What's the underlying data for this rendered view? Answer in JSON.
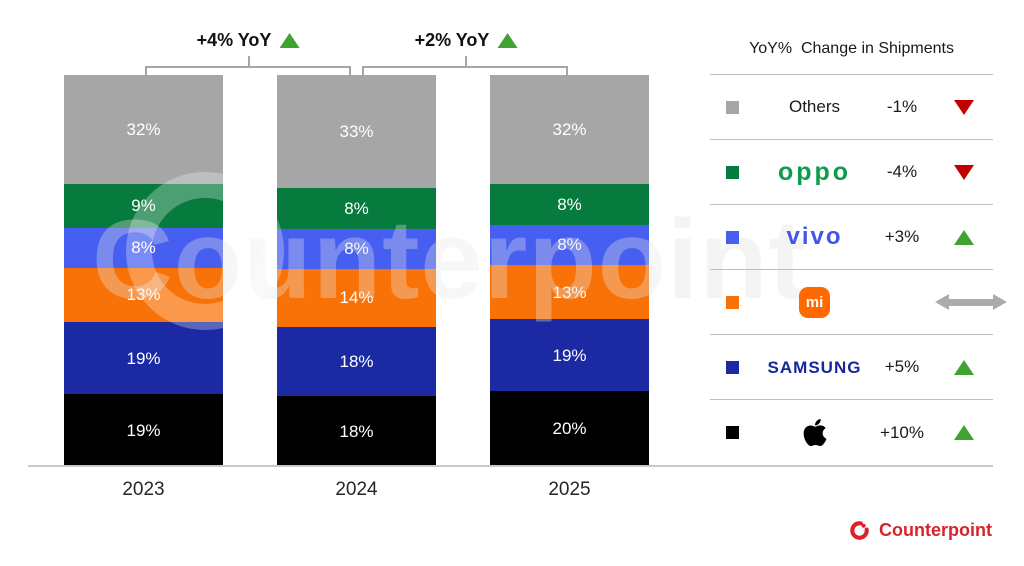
{
  "chart_data": {
    "type": "bar",
    "stacked": true,
    "title": "",
    "categories": [
      "2023",
      "2024",
      "2025"
    ],
    "series": [
      {
        "name": "Apple",
        "values": [
          19,
          18,
          20
        ]
      },
      {
        "name": "Samsung",
        "values": [
          19,
          18,
          19
        ]
      },
      {
        "name": "Xiaomi",
        "values": [
          13,
          14,
          13
        ]
      },
      {
        "name": "vivo",
        "values": [
          8,
          8,
          8
        ]
      },
      {
        "name": "OPPO",
        "values": [
          9,
          8,
          8
        ]
      },
      {
        "name": "Others",
        "values": [
          32,
          33,
          32
        ]
      }
    ],
    "value_suffix": "%",
    "ylim": [
      0,
      100
    ],
    "grid": false,
    "legend_position": "right",
    "annotations": [
      {
        "label": "+4% YoY",
        "direction": "up",
        "between": [
          "2023",
          "2024"
        ]
      },
      {
        "label": "+2% YoY",
        "direction": "up",
        "between": [
          "2024",
          "2025"
        ]
      }
    ]
  },
  "legend": {
    "title": "YoY%  Change in Shipments",
    "rows": [
      {
        "brand": "Others",
        "logo_text": "Others",
        "change": "-1%",
        "direction": "down"
      },
      {
        "brand": "OPPO",
        "logo_text": "oppo",
        "change": "-4%",
        "direction": "down"
      },
      {
        "brand": "vivo",
        "logo_text": "vivo",
        "change": "+3%",
        "direction": "up"
      },
      {
        "brand": "Xiaomi",
        "logo_text": "mi",
        "change": "",
        "direction": "flat"
      },
      {
        "brand": "Samsung",
        "logo_text": "SAMSUNG",
        "change": "+5%",
        "direction": "up"
      },
      {
        "brand": "Apple",
        "logo_text": "",
        "change": "+10%",
        "direction": "up"
      }
    ]
  },
  "watermark_text": "Counterpoint",
  "branding": {
    "name": "Counterpoint"
  },
  "colors": {
    "brands": {
      "Others": "#A6A6A6",
      "OPPO": "#077A3D",
      "vivo": "#465FF0",
      "Xiaomi": "#F97208",
      "Samsung": "#1B2AA3",
      "Apple": "#000000"
    },
    "positive": "#3FA42F",
    "negative": "#C00000",
    "neutral_arrow": "#ABABAB",
    "oppo_logo": "#0E9B4C",
    "vivo_logo": "#4356E9",
    "samsung_logo": "#142899",
    "mi_logo_bg": "#FF6900",
    "counterpoint_red": "#D8232A",
    "axis": "#C9C9C9",
    "divider": "#BFBFBF"
  }
}
